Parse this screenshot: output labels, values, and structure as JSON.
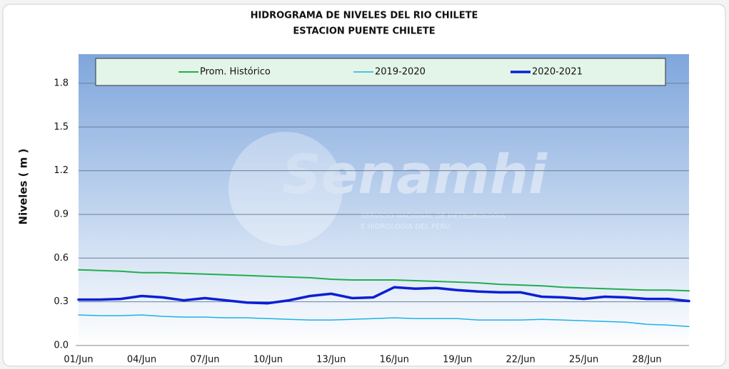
{
  "chart_data": {
    "type": "line",
    "title": "HIDROGRAMA DE NIVELES DEL RIO CHILETE",
    "subtitle": "ESTACION PUENTE CHILETE",
    "y_label": "Niveles ( m )",
    "watermark": {
      "title": "Senamhi",
      "lines": [
        "SERVICIO NACIONAL DE METEOROLOGIA",
        "E HIDROLOGIA DEL PERU"
      ]
    },
    "categories": [
      "01/Jun",
      null,
      null,
      "04/Jun",
      null,
      null,
      "07/Jun",
      null,
      null,
      "10/Jun",
      null,
      null,
      "13/Jun",
      null,
      null,
      "16/Jun",
      null,
      null,
      "19/Jun",
      null,
      null,
      "22/Jun",
      null,
      null,
      "25/Jun",
      null,
      null,
      "28/Jun",
      null,
      null
    ],
    "series": [
      {
        "name": "Prom. Histórico",
        "color": "#22ad4f",
        "values": [
          0.52,
          0.515,
          0.51,
          0.5,
          0.5,
          0.495,
          0.49,
          0.485,
          0.48,
          0.475,
          0.47,
          0.465,
          0.455,
          0.45,
          0.45,
          0.45,
          0.445,
          0.44,
          0.435,
          0.43,
          0.42,
          0.415,
          0.41,
          0.4,
          0.395,
          0.39,
          0.385,
          0.38,
          0.38,
          0.375
        ]
      },
      {
        "name": "2019-2020",
        "color": "#1cb1e8",
        "values": [
          0.21,
          0.205,
          0.205,
          0.21,
          0.2,
          0.195,
          0.195,
          0.19,
          0.19,
          0.185,
          0.18,
          0.175,
          0.175,
          0.18,
          0.185,
          0.19,
          0.185,
          0.185,
          0.185,
          0.175,
          0.175,
          0.175,
          0.18,
          0.175,
          0.17,
          0.165,
          0.16,
          0.145,
          0.14,
          0.13
        ]
      },
      {
        "name": "2020-2021",
        "color": "#0b1fd4",
        "values": [
          0.315,
          0.315,
          0.32,
          0.34,
          0.33,
          0.31,
          0.325,
          0.31,
          0.295,
          0.29,
          0.31,
          0.34,
          0.355,
          0.325,
          0.33,
          0.4,
          0.39,
          0.395,
          0.38,
          0.37,
          0.365,
          0.365,
          0.335,
          0.33,
          0.32,
          0.335,
          0.33,
          0.32,
          0.32,
          0.305
        ]
      }
    ],
    "ylim": [
      0,
      2.0
    ],
    "yticks": [
      {
        "value": 0,
        "label": "0.0"
      },
      0.3,
      0.6,
      0.9,
      1.2,
      1.5,
      1.8
    ],
    "grid": true,
    "legend": "top"
  }
}
